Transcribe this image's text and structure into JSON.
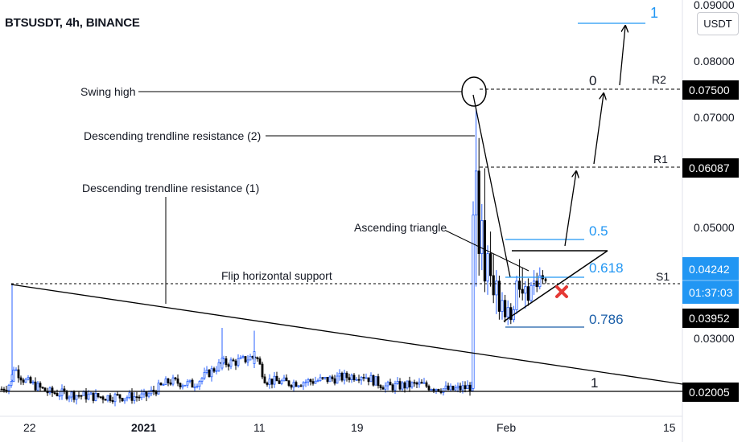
{
  "header": {
    "title": "BTSUSDT, 4h, BINANCE",
    "currency_button": "USDT"
  },
  "colors": {
    "candle": "#2962ff",
    "candle_light": "#6fa8f0",
    "fib": "#2196f3",
    "fib_dark": "#1a5ea8",
    "price_tag_dark": "#000000",
    "price_tag_blue": "#2196f3",
    "cross": "#e53935"
  },
  "chart_data": {
    "type": "candlestick",
    "symbol": "BTSUSDT",
    "interval": "4h",
    "exchange": "BINANCE",
    "x_ticks": [
      "22",
      "2021",
      "11",
      "19",
      "Feb",
      "15"
    ],
    "y_ticks": [
      "0.09000",
      "0.08000",
      "0.07000",
      "0.05000",
      "0.03000"
    ],
    "price_tags": [
      {
        "label": "0.07500",
        "style": "dark"
      },
      {
        "label": "0.06087",
        "style": "dark"
      },
      {
        "label": "0.04242",
        "style": "blue"
      },
      {
        "label": "01:37:03",
        "style": "countdown"
      },
      {
        "label": "0.03952",
        "style": "dark"
      },
      {
        "label": "0.02005",
        "style": "dark"
      }
    ],
    "levels": [
      {
        "name": "R2",
        "value": 0.075
      },
      {
        "name": "R1",
        "value": 0.06087
      },
      {
        "name": "S1",
        "value": 0.0415
      },
      {
        "name": "support",
        "value": 0.02005
      }
    ],
    "fib_labels": [
      {
        "label": "1",
        "value": 0.0885
      },
      {
        "label": "0",
        "value": 0.075
      },
      {
        "label": "0.5",
        "value": 0.047
      },
      {
        "label": "0.618",
        "value": 0.0435
      },
      {
        "label": "0.786",
        "value": 0.0367
      },
      {
        "label": "1",
        "value": 0.0209
      }
    ],
    "annotations": [
      "Swing high",
      "Descending trendline resistance (2)",
      "Descending trendline resistance (1)",
      "Ascending triangle",
      "Flip horizontal support"
    ],
    "pump_candles": [
      {
        "o": 0.0225,
        "h": 0.0565,
        "l": 0.0222,
        "c": 0.054
      },
      {
        "o": 0.054,
        "h": 0.0735,
        "l": 0.041,
        "c": 0.062
      },
      {
        "o": 0.062,
        "h": 0.068,
        "l": 0.043,
        "c": 0.047
      },
      {
        "o": 0.047,
        "h": 0.056,
        "l": 0.044,
        "c": 0.053
      },
      {
        "o": 0.053,
        "h": 0.0625,
        "l": 0.04,
        "c": 0.042
      },
      {
        "o": 0.042,
        "h": 0.0485,
        "l": 0.0395,
        "c": 0.047
      },
      {
        "o": 0.047,
        "h": 0.051,
        "l": 0.041,
        "c": 0.043
      },
      {
        "o": 0.043,
        "h": 0.047,
        "l": 0.038,
        "c": 0.0395
      },
      {
        "o": 0.0395,
        "h": 0.044,
        "l": 0.036,
        "c": 0.042
      },
      {
        "o": 0.042,
        "h": 0.043,
        "l": 0.035,
        "c": 0.0365
      },
      {
        "o": 0.0365,
        "h": 0.04,
        "l": 0.035,
        "c": 0.0385
      },
      {
        "o": 0.0385,
        "h": 0.0395,
        "l": 0.0345,
        "c": 0.0355
      },
      {
        "o": 0.0355,
        "h": 0.0385,
        "l": 0.034,
        "c": 0.0372
      },
      {
        "o": 0.0372,
        "h": 0.038,
        "l": 0.0342,
        "c": 0.035
      },
      {
        "o": 0.035,
        "h": 0.0375,
        "l": 0.0345,
        "c": 0.0368
      },
      {
        "o": 0.0368,
        "h": 0.043,
        "l": 0.036,
        "c": 0.042
      },
      {
        "o": 0.042,
        "h": 0.046,
        "l": 0.039,
        "c": 0.0405
      },
      {
        "o": 0.0405,
        "h": 0.0445,
        "l": 0.0385,
        "c": 0.0398
      },
      {
        "o": 0.0398,
        "h": 0.042,
        "l": 0.037,
        "c": 0.041
      },
      {
        "o": 0.041,
        "h": 0.0425,
        "l": 0.0375,
        "c": 0.0385
      },
      {
        "o": 0.0385,
        "h": 0.0418,
        "l": 0.038,
        "c": 0.0412
      },
      {
        "o": 0.0412,
        "h": 0.044,
        "l": 0.0395,
        "c": 0.042
      },
      {
        "o": 0.042,
        "h": 0.0435,
        "l": 0.04,
        "c": 0.041
      },
      {
        "o": 0.041,
        "h": 0.0445,
        "l": 0.0405,
        "c": 0.043
      },
      {
        "o": 0.043,
        "h": 0.044,
        "l": 0.0415,
        "c": 0.0424
      }
    ]
  }
}
